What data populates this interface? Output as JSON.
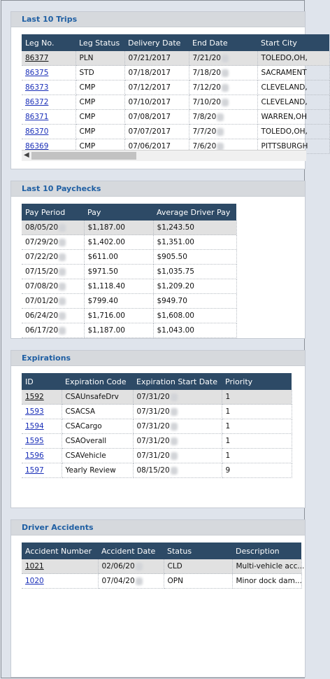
{
  "trips": {
    "title": "Last 10 Trips",
    "columns": [
      "Leg No.",
      "Leg Status",
      "Delivery Date",
      "End Date",
      "Start City"
    ],
    "rows": [
      {
        "leg": "86377",
        "status": "PLN",
        "delivery": "07/21/2017",
        "end": "7/21/20",
        "city": "TOLEDO,OH,"
      },
      {
        "leg": "86375",
        "status": "STD",
        "delivery": "07/18/2017",
        "end": "7/18/20",
        "city": "SACRAMENT"
      },
      {
        "leg": "86373",
        "status": "CMP",
        "delivery": "07/12/2017",
        "end": "7/12/20",
        "city": "CLEVELAND,"
      },
      {
        "leg": "86372",
        "status": "CMP",
        "delivery": "07/10/2017",
        "end": "7/10/20",
        "city": "CLEVELAND,"
      },
      {
        "leg": "86371",
        "status": "CMP",
        "delivery": "07/08/2017",
        "end": "7/8/20",
        "city": "WARREN,OH"
      },
      {
        "leg": "86370",
        "status": "CMP",
        "delivery": "07/07/2017",
        "end": "7/7/20",
        "city": "TOLEDO,OH,"
      },
      {
        "leg": "86369",
        "status": "CMP",
        "delivery": "07/06/2017",
        "end": "7/6/20",
        "city": "PITTSBURGH"
      }
    ]
  },
  "paychecks": {
    "title": "Last 10 Paychecks",
    "columns": [
      "Pay Period",
      "Pay",
      "Average Driver Pay"
    ],
    "rows": [
      {
        "period": "08/05/20",
        "pay": "$1,187.00",
        "avg": "$1,243.50"
      },
      {
        "period": "07/29/20",
        "pay": "$1,402.00",
        "avg": "$1,351.00"
      },
      {
        "period": "07/22/20",
        "pay": "$611.00",
        "avg": "$905.50"
      },
      {
        "period": "07/15/20",
        "pay": "$971.50",
        "avg": "$1,035.75"
      },
      {
        "period": "07/08/20",
        "pay": "$1,118.40",
        "avg": "$1,209.20"
      },
      {
        "period": "07/01/20",
        "pay": "$799.40",
        "avg": "$949.70"
      },
      {
        "period": "06/24/20",
        "pay": "$1,716.00",
        "avg": "$1,608.00"
      },
      {
        "period": "06/17/20",
        "pay": "$1,187.00",
        "avg": "$1,043.00"
      }
    ]
  },
  "expirations": {
    "title": "Expirations",
    "columns": [
      "ID",
      "Expiration Code",
      "Expiration Start Date",
      "Priority"
    ],
    "rows": [
      {
        "id": "1592",
        "code": "CSAUnsafeDrv",
        "start": "07/31/20",
        "priority": "1"
      },
      {
        "id": "1593",
        "code": "CSACSA",
        "start": "07/31/20",
        "priority": "1"
      },
      {
        "id": "1594",
        "code": "CSACargo",
        "start": "07/31/20",
        "priority": "1"
      },
      {
        "id": "1595",
        "code": "CSAOverall",
        "start": "07/31/20",
        "priority": "1"
      },
      {
        "id": "1596",
        "code": "CSAVehicle",
        "start": "07/31/20",
        "priority": "1"
      },
      {
        "id": "1597",
        "code": "Yearly Review",
        "start": "08/15/20",
        "priority": "9"
      }
    ]
  },
  "accidents": {
    "title": "Driver Accidents",
    "columns": [
      "Accident Number",
      "Accident Date",
      "Status",
      "Description"
    ],
    "rows": [
      {
        "num": "1021",
        "date": "02/06/20",
        "status": "CLD",
        "desc": "Multi-vehicle acc..."
      },
      {
        "num": "1020",
        "date": "07/04/20",
        "status": "OPN",
        "desc": "Minor dock dam..."
      }
    ]
  }
}
